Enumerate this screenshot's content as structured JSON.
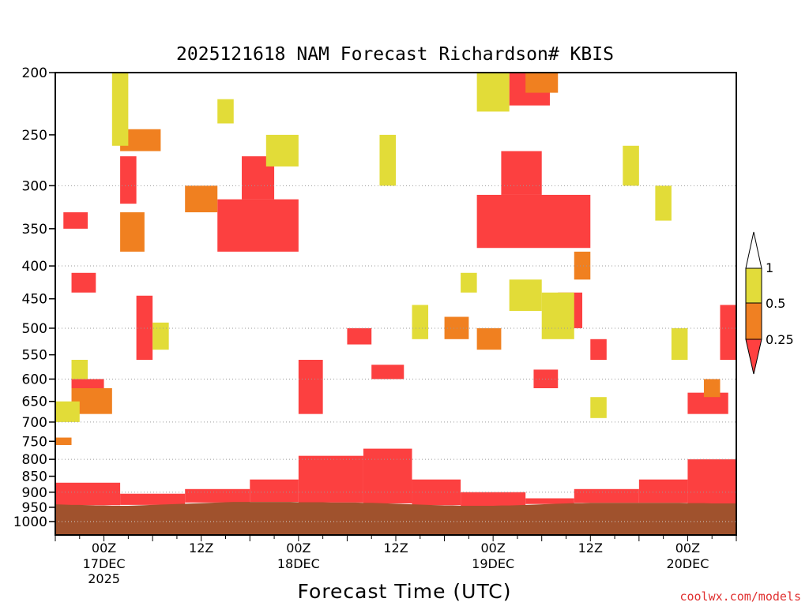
{
  "chart_data": {
    "type": "heatmap",
    "title": "2025121618 NAM Forecast Richardson# KBIS",
    "xlabel": "Forecast Time (UTC)",
    "ylabel": "",
    "y_axis": {
      "type": "pressure (log, inverted)",
      "range": [
        1000,
        200
      ],
      "ticks": [
        200,
        250,
        300,
        350,
        400,
        450,
        500,
        550,
        600,
        650,
        700,
        750,
        800,
        850,
        900,
        950,
        1000
      ],
      "dotted_gridlines": [
        300,
        400,
        500,
        600,
        700,
        800,
        900,
        1000
      ]
    },
    "x_axis": {
      "range_hours": [
        0,
        84
      ],
      "ticks": [
        {
          "hour": 6,
          "label": "00Z",
          "date": "17DEC",
          "year": "2025"
        },
        {
          "hour": 18,
          "label": "12Z",
          "date": "",
          "year": ""
        },
        {
          "hour": 30,
          "label": "00Z",
          "date": "18DEC",
          "year": ""
        },
        {
          "hour": 42,
          "label": "12Z",
          "date": "",
          "year": ""
        },
        {
          "hour": 54,
          "label": "00Z",
          "date": "19DEC",
          "year": ""
        },
        {
          "hour": 66,
          "label": "12Z",
          "date": "",
          "year": ""
        },
        {
          "hour": 78,
          "label": "00Z",
          "date": "20DEC",
          "year": ""
        }
      ]
    },
    "legend": {
      "placement": "right",
      "levels": [
        {
          "label": "1",
          "color": "#ffffff"
        },
        {
          "label": "0.5",
          "color": "#e2dc3a"
        },
        {
          "label": "0.25",
          "color": "#f08022"
        },
        {
          "label": "",
          "color": "#ff4040"
        }
      ]
    },
    "colors": {
      "red": "#fc4040",
      "orange": "#f08020",
      "yellow": "#e2dc38",
      "ground": "#a0522d"
    },
    "surface_pressure": [
      940,
      941,
      942,
      942,
      943,
      944,
      944,
      945,
      945,
      945,
      944,
      943,
      942,
      941,
      940,
      939,
      938,
      937,
      936,
      935,
      934,
      933,
      932,
      932,
      932,
      932,
      932,
      932,
      932,
      932,
      933,
      933,
      933,
      933,
      934,
      934,
      934,
      934,
      935,
      935,
      936,
      937,
      938,
      939,
      940,
      941,
      942,
      943,
      944,
      944,
      945,
      945,
      945,
      945,
      945,
      944,
      944,
      943,
      942,
      941,
      940,
      939,
      938,
      937,
      936,
      936,
      935,
      935,
      935,
      935,
      935,
      935,
      935,
      935,
      935,
      935,
      935,
      935,
      936,
      936,
      936,
      937,
      937,
      937,
      937
    ],
    "layers": [
      {
        "category": "red",
        "bands": [
          {
            "hours": [
              0,
              8
            ],
            "top": 870,
            "bottom": "surface"
          },
          {
            "hours": [
              8,
              16
            ],
            "top": 905,
            "bottom": "surface"
          },
          {
            "hours": [
              16,
              24
            ],
            "top": 890,
            "bottom": "surface"
          },
          {
            "hours": [
              24,
              30
            ],
            "top": 860,
            "bottom": "surface"
          },
          {
            "hours": [
              30,
              38
            ],
            "top": 790,
            "bottom": "surface"
          },
          {
            "hours": [
              38,
              44
            ],
            "top": 770,
            "bottom": "surface"
          },
          {
            "hours": [
              44,
              50
            ],
            "top": 860,
            "bottom": "surface"
          },
          {
            "hours": [
              50,
              58
            ],
            "top": 900,
            "bottom": "surface"
          },
          {
            "hours": [
              58,
              64
            ],
            "top": 920,
            "bottom": "surface"
          },
          {
            "hours": [
              64,
              72
            ],
            "top": 890,
            "bottom": "surface"
          },
          {
            "hours": [
              72,
              78
            ],
            "top": 860,
            "bottom": "surface"
          },
          {
            "hours": [
              78,
              84
            ],
            "top": 800,
            "bottom": "surface"
          }
        ]
      },
      {
        "category": "red",
        "bands": [
          {
            "hours": [
              20,
              30
            ],
            "top": 315,
            "bottom": 380
          },
          {
            "hours": [
              23,
              27
            ],
            "top": 270,
            "bottom": 315
          },
          {
            "hours": [
              52,
              66
            ],
            "top": 310,
            "bottom": 375
          },
          {
            "hours": [
              55,
              60
            ],
            "top": 265,
            "bottom": 310
          },
          {
            "hours": [
              56,
              61
            ],
            "top": 200,
            "bottom": 225
          },
          {
            "hours": [
              2,
              5
            ],
            "top": 410,
            "bottom": 440
          },
          {
            "hours": [
              1,
              4
            ],
            "top": 330,
            "bottom": 350
          },
          {
            "hours": [
              78,
              83
            ],
            "top": 630,
            "bottom": 680
          },
          {
            "hours": [
              82,
              84
            ],
            "top": 460,
            "bottom": 560
          },
          {
            "hours": [
              2,
              6
            ],
            "top": 600,
            "bottom": 620
          },
          {
            "hours": [
              10,
              12
            ],
            "top": 445,
            "bottom": 560
          },
          {
            "hours": [
              30,
              33
            ],
            "top": 560,
            "bottom": 680
          },
          {
            "hours": [
              36,
              39
            ],
            "top": 500,
            "bottom": 530
          },
          {
            "hours": [
              39,
              43
            ],
            "top": 570,
            "bottom": 600
          },
          {
            "hours": [
              59,
              62
            ],
            "top": 580,
            "bottom": 620
          },
          {
            "hours": [
              62,
              65
            ],
            "top": 440,
            "bottom": 500
          },
          {
            "hours": [
              66,
              68
            ],
            "top": 520,
            "bottom": 560
          },
          {
            "hours": [
              8,
              10
            ],
            "top": 270,
            "bottom": 320
          }
        ]
      },
      {
        "category": "orange",
        "bands": [
          {
            "hours": [
              8,
              13
            ],
            "top": 245,
            "bottom": 265
          },
          {
            "hours": [
              8,
              11
            ],
            "top": 330,
            "bottom": 380
          },
          {
            "hours": [
              2,
              7
            ],
            "top": 620,
            "bottom": 680
          },
          {
            "hours": [
              48,
              51
            ],
            "top": 480,
            "bottom": 520
          },
          {
            "hours": [
              58,
              62
            ],
            "top": 200,
            "bottom": 215
          },
          {
            "hours": [
              16,
              20
            ],
            "top": 300,
            "bottom": 330
          },
          {
            "hours": [
              52,
              55
            ],
            "top": 500,
            "bottom": 540
          },
          {
            "hours": [
              80,
              82
            ],
            "top": 600,
            "bottom": 640
          },
          {
            "hours": [
              0,
              2
            ],
            "top": 740,
            "bottom": 760
          },
          {
            "hours": [
              64,
              66
            ],
            "top": 380,
            "bottom": 420
          }
        ]
      },
      {
        "category": "yellow",
        "bands": [
          {
            "hours": [
              52,
              56
            ],
            "top": 200,
            "bottom": 230
          },
          {
            "hours": [
              26,
              30
            ],
            "top": 250,
            "bottom": 280
          },
          {
            "hours": [
              7,
              9
            ],
            "top": 200,
            "bottom": 260
          },
          {
            "hours": [
              12,
              14
            ],
            "top": 490,
            "bottom": 540
          },
          {
            "hours": [
              56,
              60
            ],
            "top": 420,
            "bottom": 470
          },
          {
            "hours": [
              60,
              64
            ],
            "top": 440,
            "bottom": 520
          },
          {
            "hours": [
              74,
              76
            ],
            "top": 300,
            "bottom": 340
          },
          {
            "hours": [
              76,
              78
            ],
            "top": 500,
            "bottom": 560
          },
          {
            "hours": [
              2,
              4
            ],
            "top": 560,
            "bottom": 600
          },
          {
            "hours": [
              50,
              52
            ],
            "top": 410,
            "bottom": 440
          },
          {
            "hours": [
              20,
              22
            ],
            "top": 220,
            "bottom": 240
          },
          {
            "hours": [
              40,
              42
            ],
            "top": 250,
            "bottom": 300
          },
          {
            "hours": [
              0,
              3
            ],
            "top": 650,
            "bottom": 700
          },
          {
            "hours": [
              44,
              46
            ],
            "top": 460,
            "bottom": 520
          },
          {
            "hours": [
              70,
              72
            ],
            "top": 260,
            "bottom": 300
          },
          {
            "hours": [
              66,
              68
            ],
            "top": 640,
            "bottom": 690
          }
        ]
      }
    ],
    "legend_labels": [
      "1",
      "0.5",
      "0.25"
    ]
  },
  "credit": "coolwx.com/models"
}
